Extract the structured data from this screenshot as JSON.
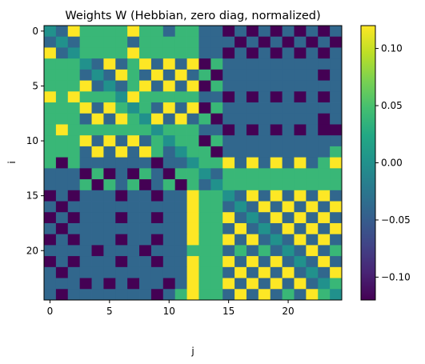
{
  "chart_data": {
    "type": "heatmap",
    "title": "Weights W (Hebbian, zero diag, normalized)",
    "xlabel": "j",
    "ylabel": "i",
    "n": 25,
    "colormap": "viridis",
    "vmin": -0.12,
    "vmax": 0.12,
    "x_ticks": [
      0,
      5,
      10,
      15,
      20
    ],
    "y_ticks": [
      0,
      5,
      10,
      15,
      20
    ],
    "colorbar_ticks": [
      0.1,
      0.05,
      0.0,
      -0.05,
      -0.1
    ],
    "colorbar_tick_labels": [
      "0.10",
      "0.05",
      "0.00",
      "−0.05",
      "−0.10"
    ],
    "values": [
      [
        0.0,
        -0.04,
        0.12,
        0.04,
        0.04,
        0.04,
        0.04,
        0.12,
        0.04,
        0.04,
        -0.04,
        0.04,
        0.04,
        -0.04,
        -0.04,
        -0.12,
        -0.04,
        -0.12,
        -0.04,
        -0.12,
        -0.04,
        -0.12,
        -0.04,
        -0.12,
        -0.04
      ],
      [
        -0.04,
        0.0,
        -0.04,
        0.04,
        0.04,
        0.04,
        0.04,
        -0.04,
        0.04,
        0.04,
        0.04,
        0.04,
        0.04,
        -0.04,
        -0.04,
        -0.04,
        -0.12,
        -0.04,
        -0.12,
        -0.04,
        -0.12,
        -0.04,
        -0.12,
        -0.04,
        -0.12
      ],
      [
        0.12,
        -0.04,
        0.0,
        0.04,
        0.04,
        0.04,
        0.04,
        0.12,
        0.04,
        0.04,
        0.04,
        0.04,
        0.04,
        -0.04,
        -0.04,
        -0.12,
        -0.04,
        -0.12,
        -0.04,
        -0.12,
        -0.04,
        -0.12,
        -0.04,
        -0.12,
        -0.04
      ],
      [
        0.04,
        0.04,
        0.04,
        0.0,
        -0.04,
        0.12,
        -0.04,
        0.04,
        0.12,
        -0.04,
        0.12,
        -0.04,
        0.12,
        -0.12,
        0.04,
        -0.04,
        -0.04,
        -0.04,
        -0.04,
        -0.04,
        -0.04,
        -0.04,
        -0.04,
        -0.04,
        -0.04
      ],
      [
        0.04,
        0.04,
        0.04,
        -0.04,
        0.0,
        -0.04,
        0.12,
        0.04,
        -0.04,
        0.12,
        -0.04,
        0.12,
        -0.04,
        0.04,
        -0.12,
        -0.04,
        -0.04,
        -0.04,
        -0.04,
        -0.04,
        -0.04,
        -0.04,
        -0.04,
        -0.12,
        -0.04
      ],
      [
        0.04,
        0.04,
        0.04,
        0.12,
        -0.04,
        0.0,
        -0.04,
        0.04,
        0.12,
        -0.04,
        0.12,
        -0.04,
        0.12,
        -0.12,
        0.04,
        -0.04,
        -0.04,
        -0.04,
        -0.04,
        -0.04,
        -0.04,
        -0.04,
        -0.04,
        -0.04,
        -0.04
      ],
      [
        0.12,
        0.04,
        0.12,
        0.04,
        0.04,
        0.04,
        0.0,
        0.12,
        0.04,
        0.04,
        0.04,
        0.04,
        0.04,
        -0.04,
        -0.04,
        -0.12,
        -0.04,
        -0.12,
        -0.04,
        -0.12,
        -0.04,
        -0.12,
        -0.04,
        -0.12,
        -0.04
      ],
      [
        0.04,
        0.04,
        0.04,
        0.12,
        -0.04,
        0.12,
        0.04,
        0.0,
        0.04,
        -0.04,
        0.12,
        -0.04,
        0.12,
        -0.12,
        0.04,
        -0.04,
        -0.04,
        -0.04,
        -0.04,
        -0.04,
        -0.04,
        -0.04,
        -0.04,
        -0.04,
        -0.04
      ],
      [
        0.04,
        0.04,
        0.04,
        -0.04,
        0.12,
        -0.04,
        0.12,
        0.04,
        0.0,
        0.12,
        -0.04,
        0.12,
        -0.04,
        0.04,
        -0.12,
        -0.04,
        -0.04,
        -0.04,
        -0.04,
        -0.04,
        -0.04,
        -0.04,
        -0.04,
        -0.12,
        -0.04
      ],
      [
        0.04,
        0.12,
        0.04,
        0.04,
        0.04,
        0.04,
        0.04,
        0.04,
        0.04,
        0.0,
        0.04,
        0.04,
        0.04,
        -0.04,
        -0.04,
        -0.12,
        -0.04,
        -0.12,
        -0.04,
        -0.12,
        -0.04,
        -0.12,
        -0.04,
        -0.12,
        -0.12
      ],
      [
        0.04,
        0.04,
        0.04,
        0.12,
        -0.04,
        0.12,
        -0.04,
        0.12,
        -0.04,
        0.04,
        0.0,
        0.04,
        0.04,
        -0.12,
        0.04,
        -0.04,
        -0.04,
        -0.04,
        -0.04,
        -0.04,
        -0.04,
        -0.04,
        -0.04,
        -0.04,
        -0.04
      ],
      [
        0.04,
        0.04,
        0.04,
        -0.04,
        0.12,
        -0.04,
        0.12,
        -0.04,
        0.12,
        0.04,
        -0.04,
        0.0,
        0.04,
        0.04,
        -0.12,
        -0.04,
        -0.04,
        -0.04,
        -0.04,
        -0.04,
        -0.04,
        -0.04,
        -0.04,
        -0.04,
        0.04
      ],
      [
        0.04,
        -0.12,
        0.04,
        -0.04,
        -0.04,
        -0.04,
        -0.04,
        -0.04,
        -0.04,
        -0.12,
        -0.04,
        -0.04,
        0.0,
        0.04,
        0.04,
        0.12,
        -0.04,
        0.12,
        -0.04,
        0.12,
        -0.04,
        0.12,
        -0.04,
        0.04,
        0.12
      ],
      [
        -0.04,
        -0.04,
        -0.04,
        -0.12,
        0.04,
        -0.12,
        -0.04,
        -0.12,
        0.04,
        -0.04,
        -0.12,
        0.04,
        0.04,
        0.0,
        -0.04,
        0.04,
        0.04,
        0.04,
        0.04,
        0.04,
        0.04,
        0.04,
        0.04,
        0.04,
        0.04
      ],
      [
        -0.04,
        -0.04,
        -0.04,
        0.04,
        -0.12,
        0.04,
        -0.04,
        0.04,
        -0.12,
        -0.04,
        0.04,
        -0.12,
        0.04,
        -0.04,
        0.0,
        0.04,
        0.04,
        0.04,
        0.04,
        0.04,
        0.04,
        0.04,
        0.04,
        0.04,
        0.04
      ],
      [
        -0.12,
        -0.04,
        -0.12,
        -0.04,
        -0.04,
        -0.04,
        -0.12,
        -0.04,
        -0.04,
        -0.12,
        -0.04,
        -0.04,
        0.12,
        0.04,
        0.04,
        0.0,
        -0.04,
        0.12,
        -0.04,
        0.12,
        -0.04,
        0.12,
        -0.04,
        0.12,
        -0.04
      ],
      [
        -0.04,
        -0.12,
        -0.04,
        -0.04,
        -0.04,
        -0.04,
        -0.04,
        -0.04,
        -0.04,
        -0.04,
        -0.04,
        -0.04,
        0.12,
        0.04,
        0.04,
        -0.04,
        0.0,
        -0.04,
        0.12,
        -0.04,
        0.12,
        -0.04,
        0.12,
        -0.04,
        0.12
      ],
      [
        -0.12,
        -0.04,
        -0.12,
        -0.04,
        -0.04,
        -0.04,
        -0.12,
        -0.04,
        -0.04,
        -0.12,
        -0.04,
        -0.04,
        0.12,
        0.04,
        0.04,
        0.12,
        -0.04,
        0.0,
        -0.04,
        0.12,
        -0.04,
        0.12,
        -0.04,
        0.12,
        -0.04
      ],
      [
        -0.04,
        -0.12,
        -0.04,
        -0.04,
        -0.04,
        -0.04,
        -0.04,
        -0.04,
        -0.04,
        -0.04,
        -0.04,
        -0.04,
        0.12,
        0.04,
        0.04,
        -0.04,
        0.12,
        -0.04,
        0.0,
        -0.04,
        0.12,
        -0.04,
        0.12,
        -0.04,
        0.12
      ],
      [
        -0.12,
        -0.04,
        -0.12,
        -0.04,
        -0.04,
        -0.04,
        -0.12,
        -0.04,
        -0.04,
        -0.12,
        -0.04,
        -0.04,
        0.12,
        0.04,
        0.04,
        0.12,
        -0.04,
        0.12,
        -0.04,
        0.0,
        -0.04,
        0.12,
        -0.04,
        0.12,
        -0.04
      ],
      [
        -0.04,
        -0.04,
        -0.04,
        -0.04,
        -0.12,
        -0.04,
        -0.04,
        -0.04,
        -0.12,
        -0.04,
        -0.04,
        -0.04,
        0.04,
        0.04,
        0.04,
        -0.04,
        0.04,
        -0.04,
        0.04,
        -0.04,
        0.0,
        -0.04,
        0.12,
        -0.04,
        0.04
      ],
      [
        -0.12,
        -0.04,
        -0.12,
        -0.04,
        -0.04,
        -0.04,
        -0.12,
        -0.04,
        -0.04,
        -0.12,
        -0.04,
        -0.04,
        0.12,
        0.04,
        0.04,
        0.12,
        -0.04,
        0.12,
        -0.04,
        0.12,
        -0.04,
        0.0,
        -0.04,
        0.12,
        -0.04
      ],
      [
        -0.04,
        -0.12,
        -0.04,
        -0.04,
        -0.04,
        -0.04,
        -0.04,
        -0.04,
        -0.04,
        -0.04,
        -0.04,
        -0.04,
        0.12,
        0.04,
        0.04,
        -0.04,
        0.12,
        -0.04,
        0.12,
        -0.04,
        0.12,
        -0.04,
        0.0,
        -0.04,
        0.12
      ],
      [
        -0.04,
        -0.04,
        -0.04,
        -0.12,
        -0.04,
        -0.12,
        -0.04,
        -0.12,
        -0.04,
        -0.04,
        -0.12,
        -0.04,
        0.12,
        0.04,
        0.04,
        0.12,
        -0.04,
        0.12,
        -0.04,
        0.12,
        -0.04,
        0.12,
        -0.04,
        0.0,
        0.04
      ],
      [
        -0.04,
        -0.12,
        -0.04,
        -0.04,
        -0.04,
        -0.04,
        -0.04,
        -0.04,
        -0.04,
        -0.12,
        -0.04,
        0.04,
        0.12,
        0.04,
        0.04,
        -0.04,
        0.12,
        -0.04,
        0.12,
        -0.04,
        0.04,
        -0.04,
        0.12,
        0.04,
        0.0
      ]
    ]
  }
}
